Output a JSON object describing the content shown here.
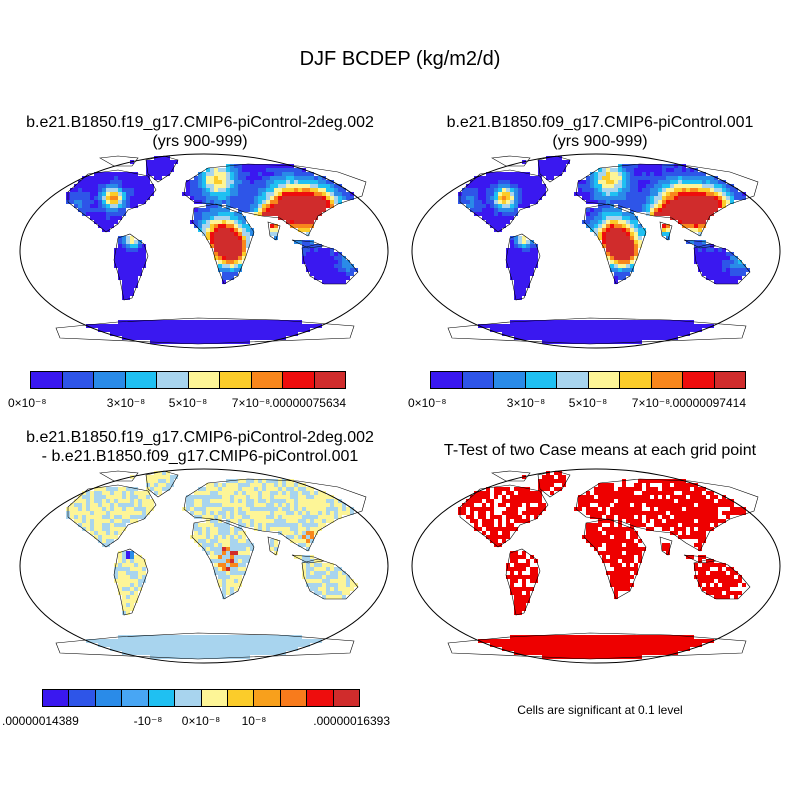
{
  "main_title": "DJF BCDEP (kg/m2/d)",
  "panels": {
    "p1": {
      "title1": "b.e21.B1850.f19_g17.CMIP6-piControl-2deg.002",
      "title2": "(yrs 900-999)"
    },
    "p2": {
      "title1": "b.e21.B1850.f09_g17.CMIP6-piControl.001",
      "title2": "(yrs 900-999)"
    },
    "p3": {
      "title1": "b.e21.B1850.f19_g17.CMIP6-piControl-2deg.002",
      "title2": "- b.e21.B1850.f09_g17.CMIP6-piControl.001"
    },
    "p4": {
      "title1": "T-Test of two Case means at each grid point",
      "note": "Cells are significant at 0.1 level"
    }
  },
  "colorbar_1": {
    "colors": [
      "#3a18f0",
      "#2e55e8",
      "#2a8be8",
      "#1fc0f2",
      "#a8d4ee",
      "#fdf597",
      "#fbcc2a",
      "#f8871c",
      "#ee0d0d",
      "#d02c2c"
    ],
    "labels": [
      "0×10⁻⁸",
      "3×10⁻⁸",
      "5×10⁻⁸",
      "7×10⁻⁸",
      ".00000075634"
    ]
  },
  "colorbar_2": {
    "colors": [
      "#3a18f0",
      "#2e55e8",
      "#2a8be8",
      "#1fc0f2",
      "#a8d4ee",
      "#fdf597",
      "#fbcc2a",
      "#f8871c",
      "#ee0d0d",
      "#d02c2c"
    ],
    "labels": [
      "0×10⁻⁸",
      "3×10⁻⁸",
      "5×10⁻⁸",
      "7×10⁻⁸",
      ".00000097414"
    ]
  },
  "colorbar_3": {
    "colors": [
      "#3a18f0",
      "#2e55e8",
      "#2a8be8",
      "#48a6f4",
      "#1fc0f2",
      "#a8d4ee",
      "#fdf597",
      "#fbcc2a",
      "#f8a01c",
      "#f87b1c",
      "#ee0d0d",
      "#d02c2c"
    ],
    "labels": [
      ".00000014389",
      "-10⁻⁸",
      "0×10⁻⁸",
      "10⁻⁸",
      ".00000016393"
    ]
  },
  "colors": {
    "ocean": "#ffffff",
    "coast": "#000000",
    "land_low": "#3a18f0",
    "significant": "#ee0000",
    "diff_neutral": "#a8d4ee",
    "diff_pos": "#fdf597"
  }
}
